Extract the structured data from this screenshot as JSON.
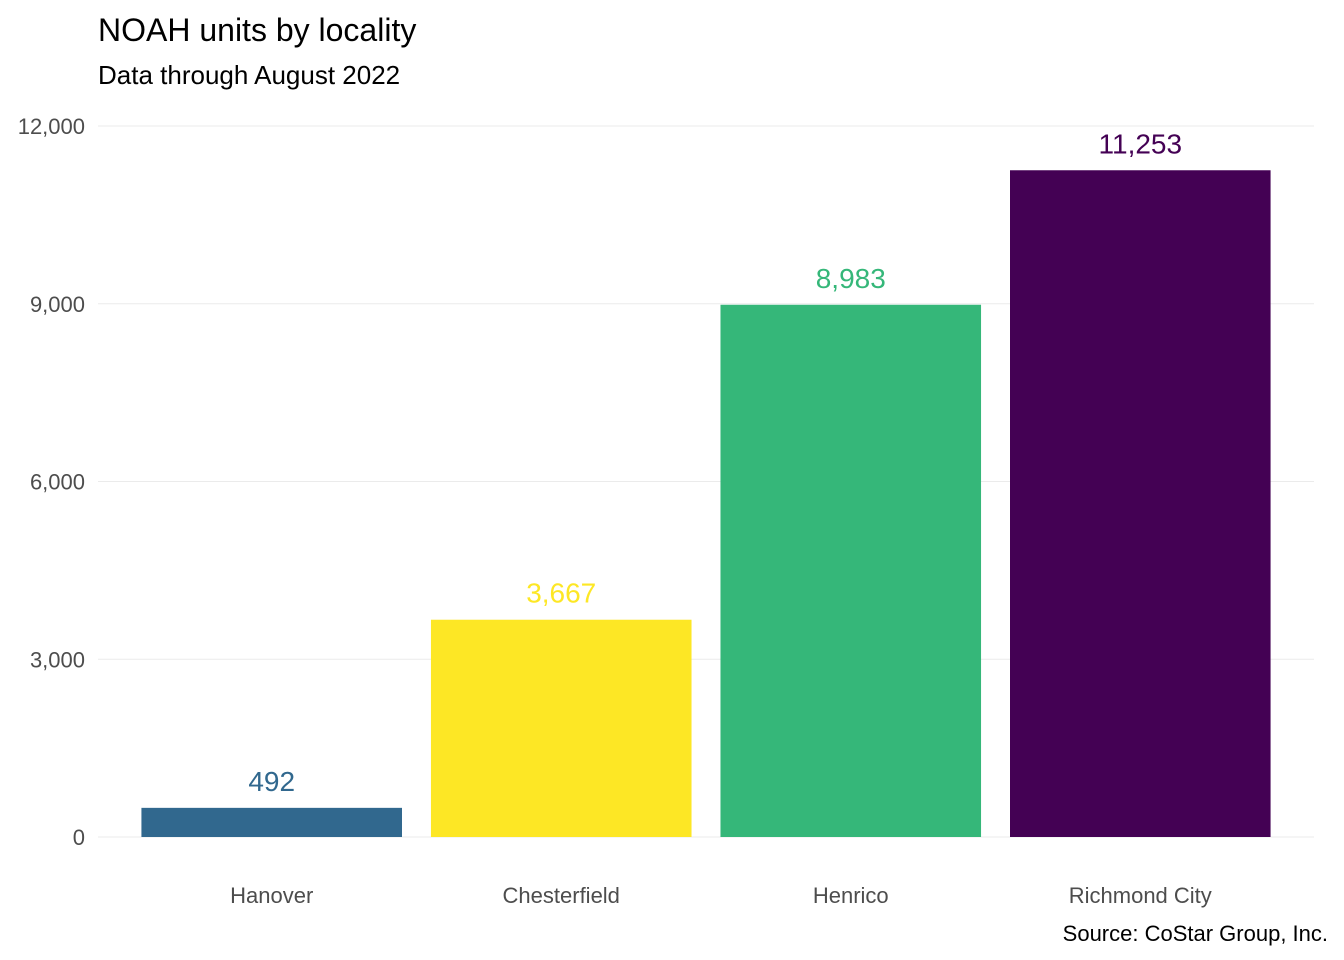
{
  "chart_data": {
    "type": "bar",
    "title": "NOAH units by locality",
    "subtitle": "Data through August 2022",
    "caption": "Source: CoStar Group, Inc.",
    "xlabel": "",
    "ylabel": "",
    "categories": [
      "Hanover",
      "Chesterfield",
      "Henrico",
      "Richmond City"
    ],
    "values": [
      492,
      3667,
      8983,
      11253
    ],
    "data_labels": [
      "492",
      "3,667",
      "8,983",
      "11,253"
    ],
    "colors": [
      "#31688e",
      "#fde725",
      "#35b779",
      "#440154"
    ],
    "ylim": [
      0,
      12000
    ],
    "yticks": [
      0,
      3000,
      6000,
      9000,
      12000
    ],
    "ytick_labels": [
      "0",
      "3,000",
      "6,000",
      "9,000",
      "12,000"
    ],
    "grid": true,
    "legend": "none"
  }
}
